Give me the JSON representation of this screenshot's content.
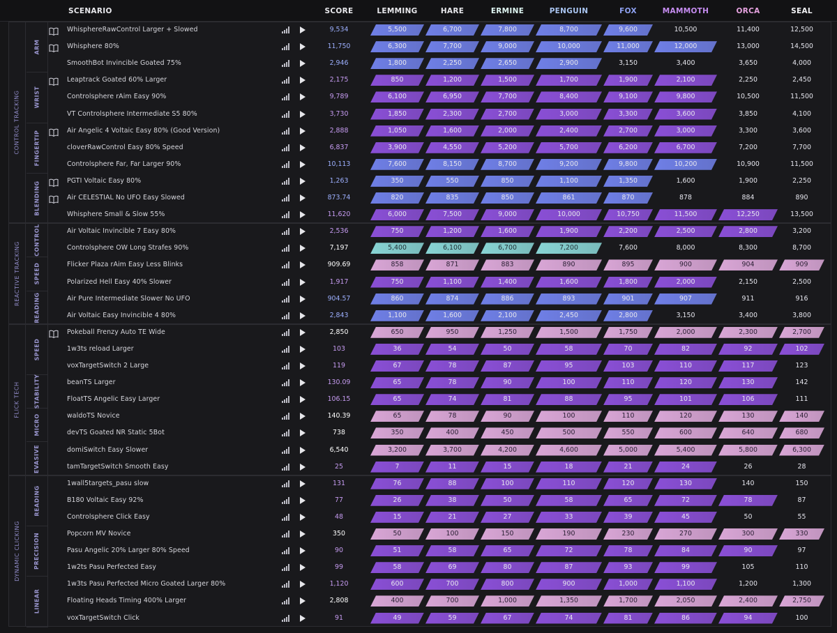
{
  "header": {
    "scenario": "SCENARIO",
    "score": "SCORE",
    "ranks": [
      {
        "label": "LEMMING",
        "color": "#e8e8ec"
      },
      {
        "label": "HARE",
        "color": "#e8e8ec"
      },
      {
        "label": "ERMINE",
        "color": "#dff5f2"
      },
      {
        "label": "PENGUIN",
        "color": "#a9c4f0"
      },
      {
        "label": "FOX",
        "color": "#8fa2f2"
      },
      {
        "label": "MAMMOTH",
        "color": "#c58cf0"
      },
      {
        "label": "ORCA",
        "color": "#e6a3e0"
      },
      {
        "label": "SEAL",
        "color": "#f3f3f6"
      }
    ]
  },
  "colors": {
    "blue": "#6f7fe6",
    "purple": "#8a4fd6",
    "pink": "#d9a6d6",
    "cyan": "#88d4d4",
    "blueScore": "#9db0ff",
    "purpleScore": "#c79cf2",
    "whiteScore": "#ffffff"
  },
  "groups": [
    {
      "label": "CONTROL TRACKING",
      "subs": [
        {
          "label": "ARM",
          "rows": [
            {
              "name": "WhisphereRawControl Larger + Slowed",
              "guide": true,
              "score": "9,534",
              "sc": "blueScore",
              "color": "blue",
              "filled": 5,
              "ranks": [
                "5,500",
                "6,700",
                "7,800",
                "8,700",
                "9,600",
                "10,500",
                "11,400",
                "12,500"
              ]
            },
            {
              "name": "Whisphere 80%",
              "guide": true,
              "score": "11,750",
              "sc": "blueScore",
              "color": "blue",
              "filled": 6,
              "ranks": [
                "6,300",
                "7,700",
                "9,000",
                "10,000",
                "11,000",
                "12,000",
                "13,000",
                "14,500"
              ]
            },
            {
              "name": "SmoothBot Invincible Goated 75%",
              "guide": false,
              "score": "2,946",
              "sc": "blueScore",
              "color": "blue",
              "filled": 4,
              "ranks": [
                "1,800",
                "2,250",
                "2,650",
                "2,900",
                "3,150",
                "3,400",
                "3,650",
                "4,000"
              ]
            }
          ]
        },
        {
          "label": "WRIST",
          "rows": [
            {
              "name": "Leaptrack Goated 60% Larger",
              "guide": true,
              "score": "2,175",
              "sc": "purpleScore",
              "color": "purple",
              "filled": 6,
              "ranks": [
                "850",
                "1,200",
                "1,500",
                "1,700",
                "1,900",
                "2,100",
                "2,250",
                "2,450"
              ]
            },
            {
              "name": "Controlsphere rAim Easy 90%",
              "guide": false,
              "score": "9,789",
              "sc": "purpleScore",
              "color": "purple",
              "filled": 6,
              "ranks": [
                "6,100",
                "6,950",
                "7,700",
                "8,400",
                "9,100",
                "9,800",
                "10,500",
                "11,500"
              ]
            },
            {
              "name": "VT Controlsphere Intermediate S5 80%",
              "guide": false,
              "score": "3,730",
              "sc": "purpleScore",
              "color": "purple",
              "filled": 6,
              "ranks": [
                "1,850",
                "2,300",
                "2,700",
                "3,000",
                "3,300",
                "3,600",
                "3,850",
                "4,100"
              ]
            }
          ]
        },
        {
          "label": "FINGERTIP",
          "rows": [
            {
              "name": "Air Angelic 4 Voltaic Easy 80% (Good Version)",
              "guide": true,
              "score": "2,888",
              "sc": "purpleScore",
              "color": "purple",
              "filled": 6,
              "ranks": [
                "1,050",
                "1,600",
                "2,000",
                "2,400",
                "2,700",
                "3,000",
                "3,300",
                "3,600"
              ]
            },
            {
              "name": "cloverRawControl Easy 80% Speed",
              "guide": false,
              "score": "6,837",
              "sc": "purpleScore",
              "color": "purple",
              "filled": 6,
              "ranks": [
                "3,900",
                "4,550",
                "5,200",
                "5,700",
                "6,200",
                "6,700",
                "7,200",
                "7,700"
              ]
            },
            {
              "name": "Controlsphere Far, Far Larger 90%",
              "guide": false,
              "score": "10,113",
              "sc": "blueScore",
              "color": "blue",
              "filled": 6,
              "ranks": [
                "7,600",
                "8,150",
                "8,700",
                "9,200",
                "9,800",
                "10,200",
                "10,900",
                "11,500"
              ]
            }
          ]
        },
        {
          "label": "BLENDING",
          "rows": [
            {
              "name": "PGTI Voltaic Easy 80%",
              "guide": true,
              "score": "1,263",
              "sc": "blueScore",
              "color": "blue",
              "filled": 5,
              "ranks": [
                "350",
                "550",
                "850",
                "1,100",
                "1,350",
                "1,600",
                "1,900",
                "2,250"
              ]
            },
            {
              "name": "Air CELESTIAL No UFO Easy Slowed",
              "guide": true,
              "score": "873.74",
              "sc": "blueScore",
              "color": "blue",
              "filled": 5,
              "ranks": [
                "820",
                "835",
                "850",
                "861",
                "870",
                "878",
                "884",
                "890"
              ]
            },
            {
              "name": "Whisphere Small & Slow 55%",
              "guide": false,
              "score": "11,620",
              "sc": "purpleScore",
              "color": "purple",
              "filled": 7,
              "ranks": [
                "6,000",
                "7,500",
                "9,000",
                "10,000",
                "10,750",
                "11,500",
                "12,250",
                "13,500"
              ]
            }
          ]
        }
      ]
    },
    {
      "label": "REACTIVE TRACKING",
      "subs": [
        {
          "label": "CONTROL",
          "rows": [
            {
              "name": "Air Voltaic Invincible 7 Easy 80%",
              "guide": false,
              "score": "2,536",
              "sc": "purpleScore",
              "color": "purple",
              "filled": 7,
              "ranks": [
                "750",
                "1,200",
                "1,600",
                "1,900",
                "2,200",
                "2,500",
                "2,800",
                "3,200"
              ]
            },
            {
              "name": "Controlsphere OW Long Strafes 90%",
              "guide": false,
              "score": "7,197",
              "sc": "whiteScore",
              "color": "cyan",
              "filled": 4,
              "ranks": [
                "5,400",
                "6,100",
                "6,700",
                "7,200",
                "7,600",
                "8,000",
                "8,300",
                "8,700"
              ]
            }
          ]
        },
        {
          "label": "SPEED",
          "rows": [
            {
              "name": "Flicker Plaza rAim Easy Less Blinks",
              "guide": false,
              "score": "909.69",
              "sc": "whiteScore",
              "color": "pink",
              "filled": 8,
              "ranks": [
                "858",
                "871",
                "883",
                "890",
                "895",
                "900",
                "904",
                "909"
              ]
            },
            {
              "name": "Polarized Hell Easy 40% Slower",
              "guide": false,
              "score": "1,917",
              "sc": "purpleScore",
              "color": "purple",
              "filled": 6,
              "ranks": [
                "750",
                "1,100",
                "1,400",
                "1,600",
                "1,800",
                "2,000",
                "2,150",
                "2,500"
              ]
            }
          ]
        },
        {
          "label": "READING",
          "rows": [
            {
              "name": "Air Pure Intermediate Slower No UFO",
              "guide": false,
              "score": "904.57",
              "sc": "blueScore",
              "color": "blue",
              "filled": 6,
              "ranks": [
                "860",
                "874",
                "886",
                "893",
                "901",
                "907",
                "911",
                "916"
              ]
            },
            {
              "name": "Air Voltaic Easy Invincible 4 80%",
              "guide": false,
              "score": "2,843",
              "sc": "blueScore",
              "color": "blue",
              "filled": 5,
              "ranks": [
                "1,100",
                "1,600",
                "2,100",
                "2,450",
                "2,800",
                "3,150",
                "3,400",
                "3,800"
              ]
            }
          ]
        }
      ]
    },
    {
      "label": "FLICK TECH",
      "subs": [
        {
          "label": "SPEED",
          "rows": [
            {
              "name": "Pokeball Frenzy Auto TE Wide",
              "guide": true,
              "score": "2,850",
              "sc": "whiteScore",
              "color": "pink",
              "filled": 8,
              "ranks": [
                "650",
                "950",
                "1,250",
                "1,500",
                "1,750",
                "2,000",
                "2,300",
                "2,700"
              ]
            },
            {
              "name": "1w3ts reload Larger",
              "guide": false,
              "score": "103",
              "sc": "purpleScore",
              "color": "purple",
              "filled": 8,
              "ranks": [
                "36",
                "54",
                "50",
                "58",
                "70",
                "82",
                "92",
                "102"
              ]
            },
            {
              "name": "voxTargetSwitch 2 Large",
              "guide": false,
              "score": "119",
              "sc": "purpleScore",
              "color": "purple",
              "filled": 7,
              "ranks": [
                "67",
                "78",
                "87",
                "95",
                "103",
                "110",
                "117",
                "123"
              ]
            }
          ]
        },
        {
          "label": "STABILITY",
          "rows": [
            {
              "name": "beanTS Larger",
              "guide": false,
              "score": "130.09",
              "sc": "purpleScore",
              "color": "purple",
              "filled": 7,
              "ranks": [
                "65",
                "78",
                "90",
                "100",
                "110",
                "120",
                "130",
                "142"
              ]
            },
            {
              "name": "FloatTS Angelic Easy Larger",
              "guide": false,
              "score": "106.15",
              "sc": "purpleScore",
              "color": "purple",
              "filled": 7,
              "ranks": [
                "65",
                "74",
                "81",
                "88",
                "95",
                "101",
                "106",
                "111"
              ]
            }
          ]
        },
        {
          "label": "MICRO",
          "rows": [
            {
              "name": "waldoTS Novice",
              "guide": false,
              "score": "140.39",
              "sc": "whiteScore",
              "color": "pink",
              "filled": 8,
              "ranks": [
                "65",
                "78",
                "90",
                "100",
                "110",
                "120",
                "130",
                "140"
              ]
            },
            {
              "name": "devTS Goated NR Static 5Bot",
              "guide": false,
              "score": "738",
              "sc": "whiteScore",
              "color": "pink",
              "filled": 8,
              "ranks": [
                "350",
                "400",
                "450",
                "500",
                "550",
                "600",
                "640",
                "680"
              ]
            }
          ]
        },
        {
          "label": "EVASIVE",
          "rows": [
            {
              "name": "domiSwitch Easy Slower",
              "guide": false,
              "score": "6,540",
              "sc": "whiteScore",
              "color": "pink",
              "filled": 8,
              "ranks": [
                "3,200",
                "3,700",
                "4,200",
                "4,600",
                "5,000",
                "5,400",
                "5,800",
                "6,300"
              ]
            },
            {
              "name": "tamTargetSwitch Smooth Easy",
              "guide": false,
              "score": "25",
              "sc": "purpleScore",
              "color": "purple",
              "filled": 6,
              "ranks": [
                "7",
                "11",
                "15",
                "18",
                "21",
                "24",
                "26",
                "28"
              ]
            }
          ]
        }
      ]
    },
    {
      "label": "DYNAMIC CLICKING",
      "subs": [
        {
          "label": "READING",
          "rows": [
            {
              "name": "1wall5targets_pasu slow",
              "guide": false,
              "score": "131",
              "sc": "purpleScore",
              "color": "purple",
              "filled": 6,
              "ranks": [
                "76",
                "88",
                "100",
                "110",
                "120",
                "130",
                "140",
                "150"
              ]
            },
            {
              "name": "B180 Voltaic Easy 92%",
              "guide": false,
              "score": "77",
              "sc": "purpleScore",
              "color": "purple",
              "filled": 7,
              "ranks": [
                "26",
                "38",
                "50",
                "58",
                "65",
                "72",
                "78",
                "87"
              ]
            },
            {
              "name": "Controlsphere Click Easy",
              "guide": false,
              "score": "48",
              "sc": "purpleScore",
              "color": "purple",
              "filled": 6,
              "ranks": [
                "15",
                "21",
                "27",
                "33",
                "39",
                "45",
                "50",
                "55"
              ]
            }
          ]
        },
        {
          "label": "PRECISION",
          "rows": [
            {
              "name": "Popcorn MV Novice",
              "guide": false,
              "score": "350",
              "sc": "whiteScore",
              "color": "pink",
              "filled": 8,
              "ranks": [
                "50",
                "100",
                "150",
                "190",
                "230",
                "270",
                "300",
                "330"
              ]
            },
            {
              "name": "Pasu Angelic 20% Larger 80% Speed",
              "guide": false,
              "score": "90",
              "sc": "purpleScore",
              "color": "purple",
              "filled": 7,
              "ranks": [
                "51",
                "58",
                "65",
                "72",
                "78",
                "84",
                "90",
                "97"
              ]
            },
            {
              "name": "1w2ts Pasu Perfected Easy",
              "guide": false,
              "score": "99",
              "sc": "purpleScore",
              "color": "purple",
              "filled": 6,
              "ranks": [
                "58",
                "69",
                "80",
                "87",
                "93",
                "99",
                "105",
                "110"
              ]
            }
          ]
        },
        {
          "label": "LINEAR",
          "rows": [
            {
              "name": "1w3ts Pasu Perfected Micro Goated Larger 80%",
              "guide": false,
              "score": "1,120",
              "sc": "purpleScore",
              "color": "purple",
              "filled": 6,
              "ranks": [
                "600",
                "700",
                "800",
                "900",
                "1,000",
                "1,100",
                "1,200",
                "1,300"
              ]
            },
            {
              "name": "Floating Heads Timing 400% Larger",
              "guide": false,
              "score": "2,808",
              "sc": "whiteScore",
              "color": "pink",
              "filled": 8,
              "ranks": [
                "400",
                "700",
                "1,000",
                "1,350",
                "1,700",
                "2,050",
                "2,400",
                "2,750"
              ]
            },
            {
              "name": "voxTargetSwitch Click",
              "guide": false,
              "score": "91",
              "sc": "purpleScore",
              "color": "purple",
              "filled": 7,
              "ranks": [
                "49",
                "59",
                "67",
                "74",
                "81",
                "86",
                "94",
                "100"
              ]
            }
          ]
        }
      ]
    }
  ]
}
